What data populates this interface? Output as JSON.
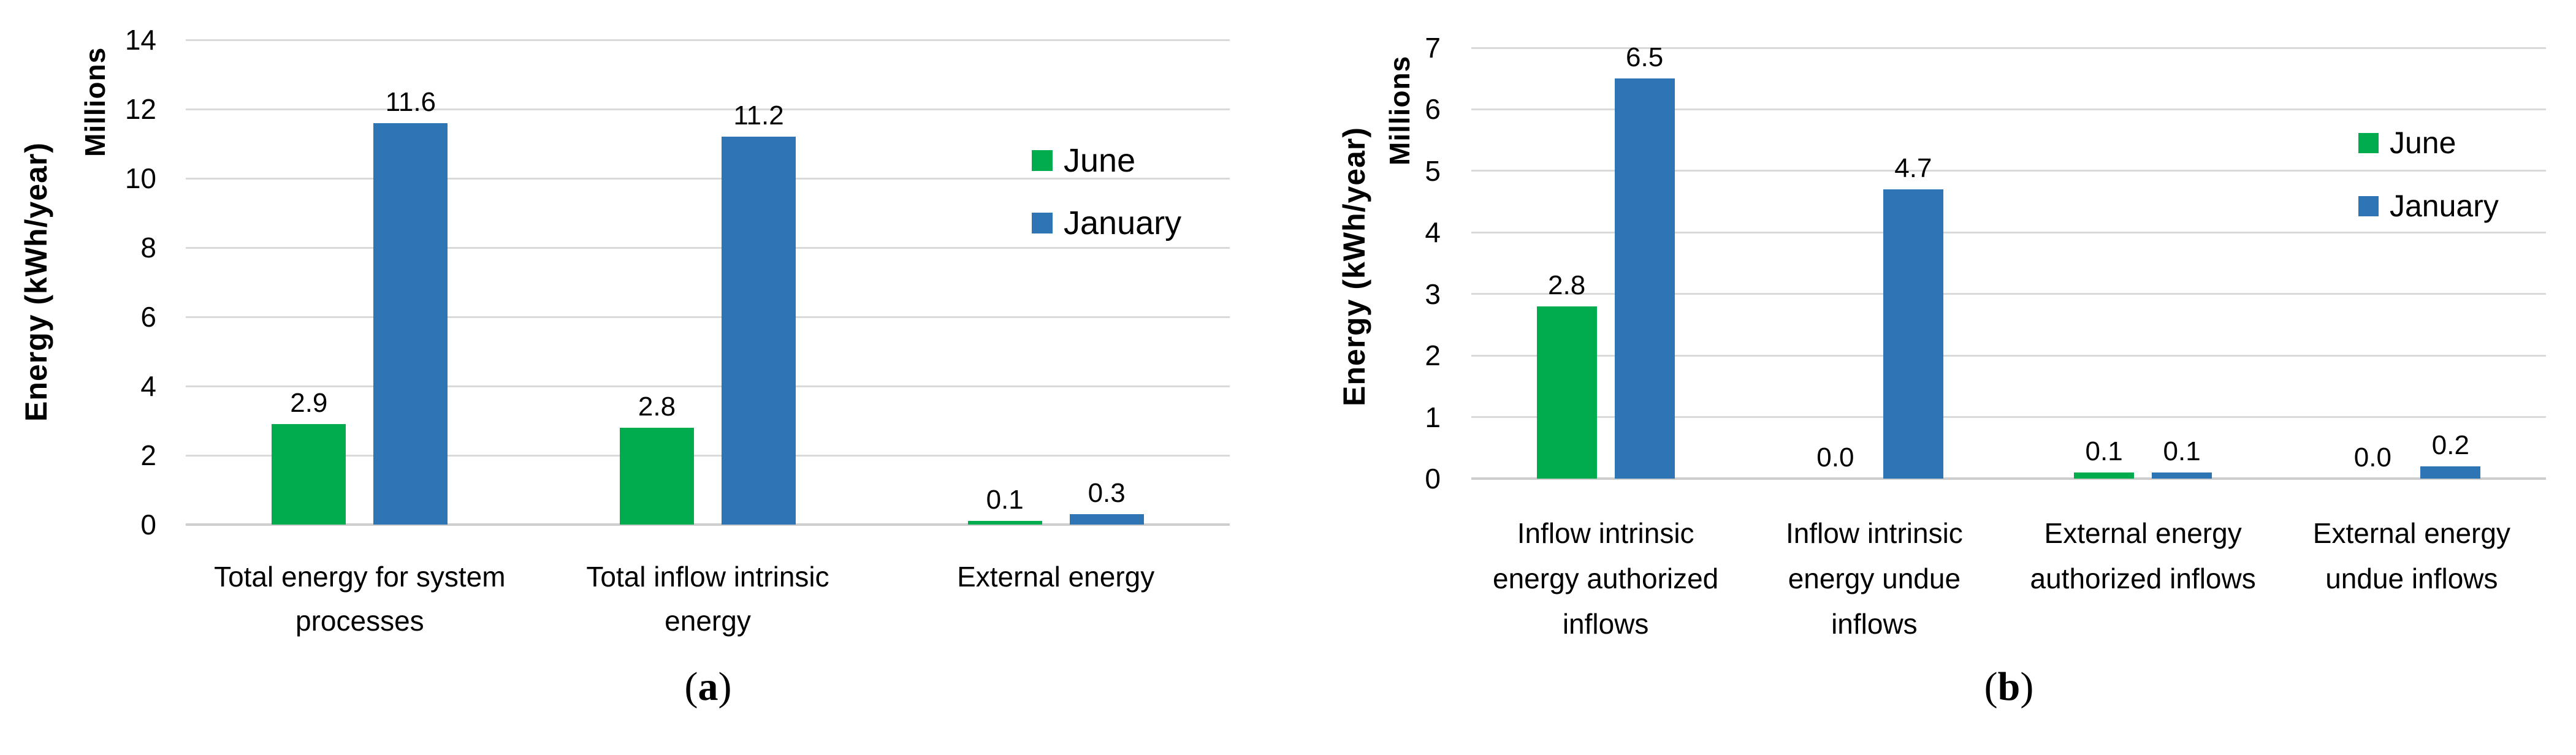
{
  "figure": {
    "captions": {
      "a": {
        "open": "(",
        "letter": "a",
        "close": ")"
      },
      "b": {
        "open": "(",
        "letter": "b",
        "close": ")"
      }
    }
  },
  "chart_data": [
    {
      "id": "a",
      "type": "bar",
      "title": "",
      "xlabel": "",
      "ylabel": "Energy (kWh/year)",
      "units_label": "Millions",
      "ylim": [
        0,
        14
      ],
      "yticks": [
        0,
        2,
        4,
        6,
        8,
        10,
        12,
        14
      ],
      "grid": true,
      "legend_position": "inside-right",
      "categories": [
        "Total energy for system processes",
        "Total inflow intrinsic energy",
        "External energy"
      ],
      "category_lines": [
        [
          "Total energy for system",
          "processes"
        ],
        [
          "Total inflow intrinsic",
          "energy"
        ],
        [
          "External energy"
        ]
      ],
      "series": [
        {
          "name": "June",
          "color": "#00AC4E",
          "values": [
            2.9,
            2.8,
            0.1
          ]
        },
        {
          "name": "January",
          "color": "#2E75B6",
          "values": [
            11.6,
            11.2,
            0.3
          ]
        }
      ]
    },
    {
      "id": "b",
      "type": "bar",
      "title": "",
      "xlabel": "",
      "ylabel": "Energy (kWh/year)",
      "units_label": "Millions",
      "ylim": [
        0,
        7
      ],
      "yticks": [
        0,
        1,
        2,
        3,
        4,
        5,
        6,
        7
      ],
      "grid": true,
      "legend_position": "inside-right",
      "categories": [
        "Inflow intrinsic energy authorized inflows",
        "Inflow intrinsic energy undue inflows",
        "External energy authorized inflows",
        "External energy undue inflows"
      ],
      "category_lines": [
        [
          "Inflow intrinsic",
          "energy authorized",
          "inflows"
        ],
        [
          "Inflow intrinsic",
          "energy undue",
          "inflows"
        ],
        [
          "External energy",
          "authorized inflows"
        ],
        [
          "External energy",
          "undue inflows"
        ]
      ],
      "series": [
        {
          "name": "June",
          "color": "#00AC4E",
          "values": [
            2.8,
            0.0,
            0.1,
            0.0
          ]
        },
        {
          "name": "January",
          "color": "#2E75B6",
          "values": [
            6.5,
            4.7,
            0.1,
            0.2
          ]
        }
      ]
    }
  ]
}
